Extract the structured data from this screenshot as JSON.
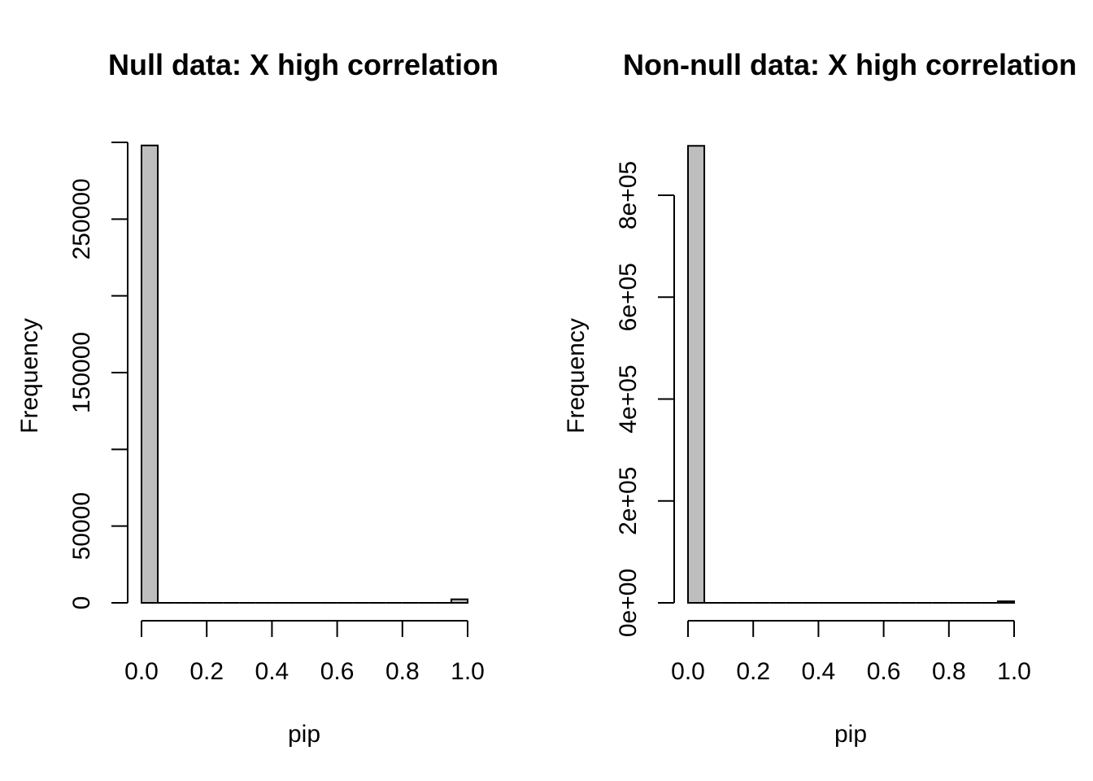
{
  "chart_data": [
    {
      "type": "bar",
      "title": "Null data: X high correlation",
      "xlabel": "pip",
      "ylabel": "Frequency",
      "xlim": [
        0,
        1
      ],
      "ylim": [
        0,
        300000
      ],
      "x_ticks": [
        "0.0",
        "0.2",
        "0.4",
        "0.6",
        "0.8",
        "1.0"
      ],
      "y_ticks": [
        "0",
        "50000",
        "150000",
        "250000"
      ],
      "bin_edges": [
        0,
        0.05,
        0.1,
        0.15,
        0.2,
        0.25,
        0.3,
        0.35,
        0.4,
        0.45,
        0.5,
        0.55,
        0.6,
        0.65,
        0.7,
        0.75,
        0.8,
        0.85,
        0.9,
        0.95,
        1.0
      ],
      "values": [
        298000,
        0,
        0,
        0,
        0,
        0,
        0,
        0,
        0,
        0,
        0,
        0,
        0,
        0,
        0,
        0,
        0,
        0,
        0,
        2300
      ]
    },
    {
      "type": "bar",
      "title": "Non-null data:  X high correlation",
      "xlabel": "pip",
      "ylabel": "Frequency",
      "xlim": [
        0,
        1
      ],
      "ylim": [
        0,
        800000
      ],
      "x_ticks": [
        "0.0",
        "0.2",
        "0.4",
        "0.6",
        "0.8",
        "1.0"
      ],
      "y_ticks": [
        "0e+00",
        "2e+05",
        "4e+05",
        "6e+05",
        "8e+05"
      ],
      "bin_edges": [
        0,
        0.05,
        0.1,
        0.15,
        0.2,
        0.25,
        0.3,
        0.35,
        0.4,
        0.45,
        0.5,
        0.55,
        0.6,
        0.65,
        0.7,
        0.75,
        0.8,
        0.85,
        0.9,
        0.95,
        1.0
      ],
      "values": [
        897000,
        0,
        0,
        0,
        0,
        0,
        0,
        0,
        0,
        0,
        0,
        0,
        0,
        0,
        0,
        0,
        0,
        0,
        0,
        3000
      ]
    }
  ]
}
